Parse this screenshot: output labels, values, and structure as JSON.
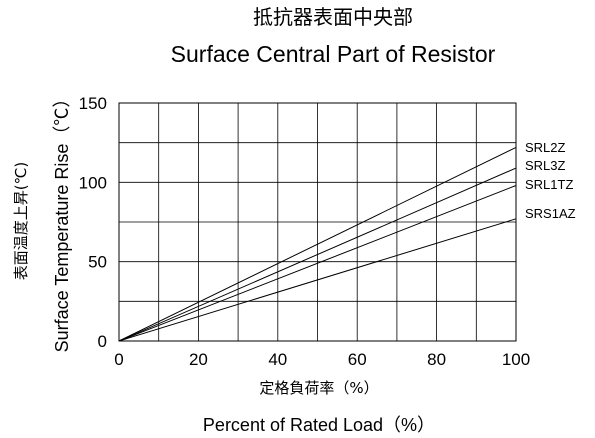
{
  "title_line1": "抵抗器表面中央部",
  "title_line2": "Surface Central Part of Resistor",
  "chart_data": {
    "type": "line",
    "xlabel_jp": "定格負荷率（%）",
    "xlabel_en": "Percent of Rated Load（%）",
    "ylabel_jp": "表面温度上昇(℃)",
    "ylabel_en": "Surface Temperature Rise（℃）",
    "xlim": [
      0,
      100
    ],
    "ylim": [
      0,
      150
    ],
    "x_ticks": [
      "0",
      "20",
      "40",
      "60",
      "80",
      "100"
    ],
    "y_ticks": [
      "0",
      "50",
      "100",
      "150"
    ],
    "grid": true,
    "series": [
      {
        "name": "SRL2Z",
        "x": [
          0,
          100
        ],
        "y": [
          0,
          122
        ]
      },
      {
        "name": "SRL3Z",
        "x": [
          0,
          100
        ],
        "y": [
          0,
          109
        ]
      },
      {
        "name": "SRL1TZ",
        "x": [
          0,
          100
        ],
        "y": [
          0,
          98
        ]
      },
      {
        "name": "SRS1AZ",
        "x": [
          0,
          100
        ],
        "y": [
          0,
          77
        ]
      }
    ]
  }
}
